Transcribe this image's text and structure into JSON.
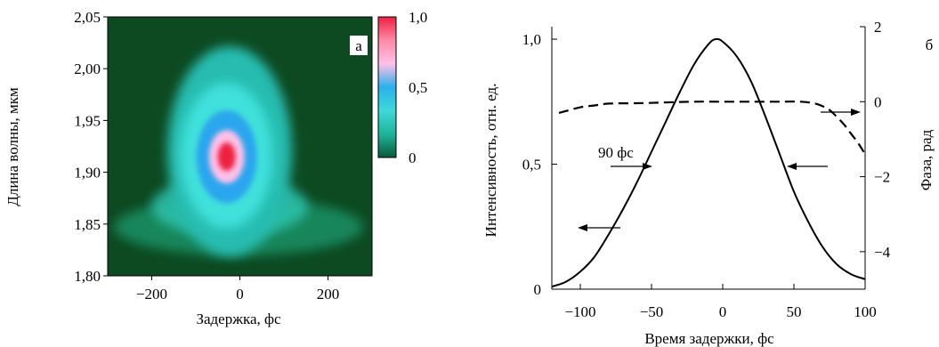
{
  "chart_data": [
    {
      "type": "heatmap",
      "panel_label": "а",
      "xlabel": "Задержка, фс",
      "ylabel": "Длина волны, мкм",
      "xlim": [
        -300,
        300
      ],
      "ylim": [
        1.8,
        2.05
      ],
      "x_ticks": [
        -200,
        0,
        200
      ],
      "x_tick_labels": [
        "−200",
        "0",
        "200"
      ],
      "y_ticks": [
        1.8,
        1.85,
        1.9,
        1.95,
        2.0,
        2.05
      ],
      "y_tick_labels": [
        "1,80",
        "1,85",
        "1,90",
        "1,95",
        "2,00",
        "2,05"
      ],
      "colorbar": {
        "range": [
          0,
          1.0
        ],
        "ticks": [
          0,
          0.5,
          1.0
        ],
        "tick_labels": [
          "0",
          "0,5",
          "1,0"
        ],
        "colors": [
          "#0a5a3a",
          "#1fb49a",
          "#3ed9d9",
          "#2ab0ec",
          "#ffc0e8",
          "#ff8aa6",
          "#ee2040"
        ]
      },
      "peak": {
        "x": -30,
        "y": 1.915,
        "value": 1.0
      },
      "background_color": "#0d4a22"
    },
    {
      "type": "line",
      "panel_label": "б",
      "xlabel": "Время задержки, фс",
      "ylabel_left": "Интенсивность, отн. ед.",
      "ylabel_right": "Фаза, рад",
      "xlim": [
        -120,
        100
      ],
      "ylim_left": [
        0,
        1.05
      ],
      "ylim_right": [
        -5,
        2
      ],
      "x_ticks": [
        -100,
        -50,
        0,
        50,
        100
      ],
      "x_tick_labels": [
        "−100",
        "−50",
        "0",
        "50",
        "100"
      ],
      "y_ticks_left": [
        0,
        0.5,
        1.0
      ],
      "y_tick_labels_left": [
        "0",
        "0,5",
        "1,0"
      ],
      "y_ticks_right": [
        2,
        0,
        -2,
        -4
      ],
      "y_tick_labels_right": [
        "2",
        "0",
        "−2",
        "−4"
      ],
      "annotation": "90 фс",
      "series": [
        {
          "style": "solid",
          "axis": "left",
          "x": [
            -120,
            -110,
            -100,
            -90,
            -80,
            -70,
            -60,
            -50,
            -40,
            -30,
            -20,
            -10,
            -5,
            0,
            10,
            20,
            30,
            40,
            50,
            60,
            70,
            80,
            90,
            100
          ],
          "y": [
            0.01,
            0.03,
            0.07,
            0.13,
            0.22,
            0.32,
            0.43,
            0.55,
            0.67,
            0.79,
            0.9,
            0.98,
            1.0,
            0.99,
            0.93,
            0.83,
            0.69,
            0.54,
            0.39,
            0.27,
            0.17,
            0.1,
            0.06,
            0.04
          ]
        },
        {
          "style": "dashed",
          "axis": "right",
          "x": [
            -115,
            -100,
            -90,
            -80,
            -60,
            -40,
            -20,
            0,
            20,
            40,
            55,
            65,
            70,
            75,
            80,
            85,
            90,
            95,
            100
          ],
          "y": [
            -0.3,
            -0.15,
            -0.1,
            -0.05,
            -0.04,
            -0.02,
            0.0,
            0.0,
            0.0,
            0.0,
            0.0,
            -0.05,
            -0.12,
            -0.22,
            -0.4,
            -0.6,
            -0.85,
            -1.1,
            -1.4
          ]
        }
      ]
    }
  ]
}
